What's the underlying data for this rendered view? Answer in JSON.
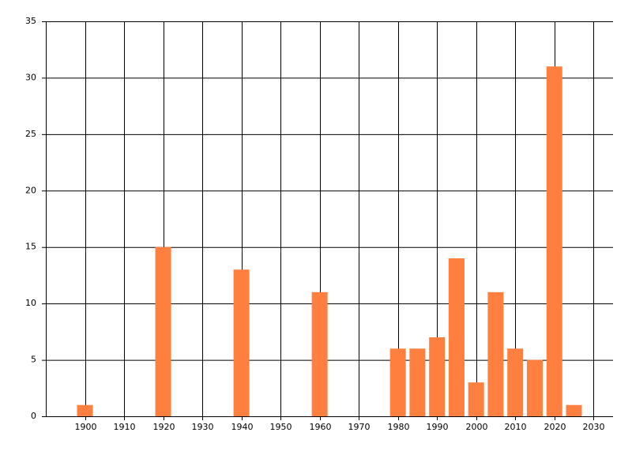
{
  "chart_data": {
    "type": "bar",
    "x": [
      1900,
      1920,
      1940,
      1960,
      1980,
      1985,
      1990,
      1995,
      2000,
      2005,
      2010,
      2015,
      2020,
      2025
    ],
    "values": [
      1,
      15,
      13,
      11,
      6,
      6,
      7,
      14,
      3,
      11,
      6,
      5,
      31,
      1
    ],
    "color": "#ff7f3f",
    "xlim": [
      1890,
      2035
    ],
    "xticks": [
      1900,
      1910,
      1920,
      1930,
      1940,
      1950,
      1960,
      1970,
      1980,
      1990,
      2000,
      2010,
      2020,
      2030
    ],
    "ylim": [
      0,
      35
    ],
    "yticks": [
      0,
      5,
      10,
      15,
      20,
      25,
      30,
      35
    ],
    "grid": true
  }
}
